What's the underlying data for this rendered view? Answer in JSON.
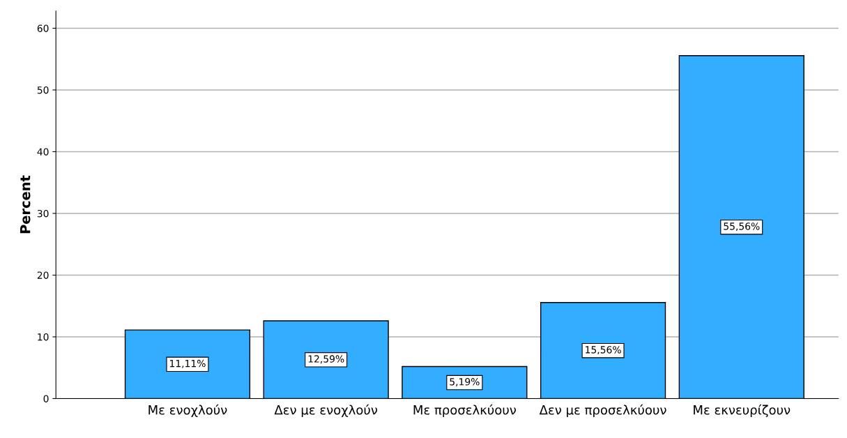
{
  "chart_data": {
    "type": "bar",
    "ylabel": "Percent",
    "categories": [
      "Με ενοχλούν",
      "Δεν με ενοχλούν",
      "Με προσελκύουν",
      "Δεν με προσελκύουν",
      "Με εκνευρίζουν"
    ],
    "values": [
      11.11,
      12.59,
      5.19,
      15.56,
      55.56
    ],
    "value_labels": [
      "11,11%",
      "12,59%",
      "5,19%",
      "15,56%",
      "55,56%"
    ],
    "color": "#33adff",
    "ylim": [
      0,
      62.8
    ],
    "yticks": [
      0,
      10,
      20,
      30,
      40,
      50,
      60
    ],
    "grid": "y",
    "legend": false
  }
}
